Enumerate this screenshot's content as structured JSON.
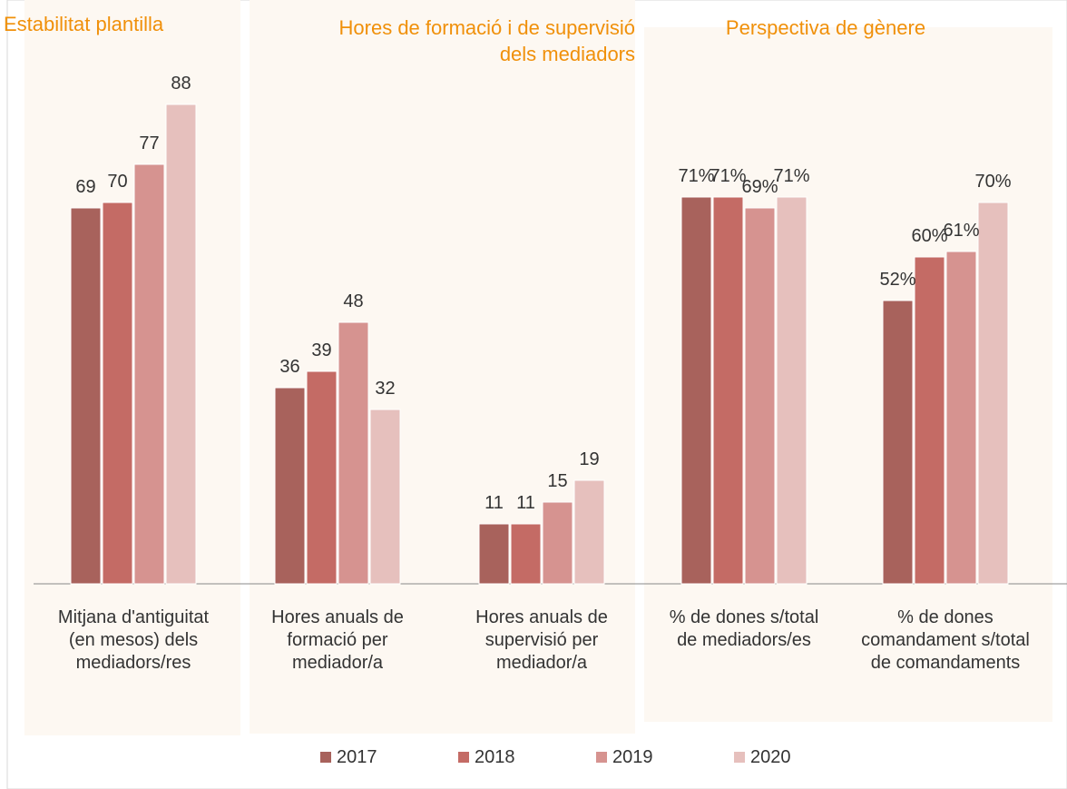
{
  "chart_data": {
    "type": "bar",
    "section_titles": [
      "Estabilitat plantilla",
      "Hores de formació i de supervisió dels mediadors",
      "Perspectiva de gènere"
    ],
    "categories": [
      "Mitjana d'antiguitat (en mesos) dels mediadors/res",
      "Hores anuals de formació per mediador/a",
      "Hores anuals de supervisió per mediador/a",
      "% de dones s/total de mediadors/es",
      "% de dones comandament s/total de comandaments"
    ],
    "series": [
      {
        "name": "2017",
        "color": "#a8625c",
        "values": [
          69,
          36,
          11,
          71,
          52
        ],
        "value_labels": [
          "69",
          "36",
          "11",
          "71%",
          "52%"
        ]
      },
      {
        "name": "2018",
        "color": "#c46b65",
        "values": [
          70,
          39,
          11,
          71,
          60
        ],
        "value_labels": [
          "70",
          "39",
          "11",
          "71%",
          "60%"
        ]
      },
      {
        "name": "2019",
        "color": "#d69390",
        "values": [
          77,
          48,
          15,
          69,
          61
        ],
        "value_labels": [
          "77",
          "48",
          "15",
          "69%",
          "61%"
        ]
      },
      {
        "name": "2020",
        "color": "#e6c0bd",
        "values": [
          88,
          32,
          19,
          71,
          70
        ],
        "value_labels": [
          "88",
          "32",
          "19",
          "71%",
          "70%"
        ]
      }
    ],
    "ylim": [
      0,
      100
    ],
    "legend": "bottom"
  }
}
